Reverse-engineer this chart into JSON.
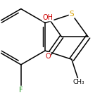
{
  "background_color": "#ffffff",
  "bond_color": "#000000",
  "atom_colors": {
    "S": "#daa000",
    "O": "#cc0000",
    "F": "#008800",
    "C": "#000000",
    "H": "#000000"
  },
  "bond_lw": 1.1,
  "figsize": [
    1.52,
    1.52
  ],
  "dpi": 100,
  "xlim": [
    -1.6,
    2.2
  ],
  "ylim": [
    -1.8,
    1.6
  ]
}
